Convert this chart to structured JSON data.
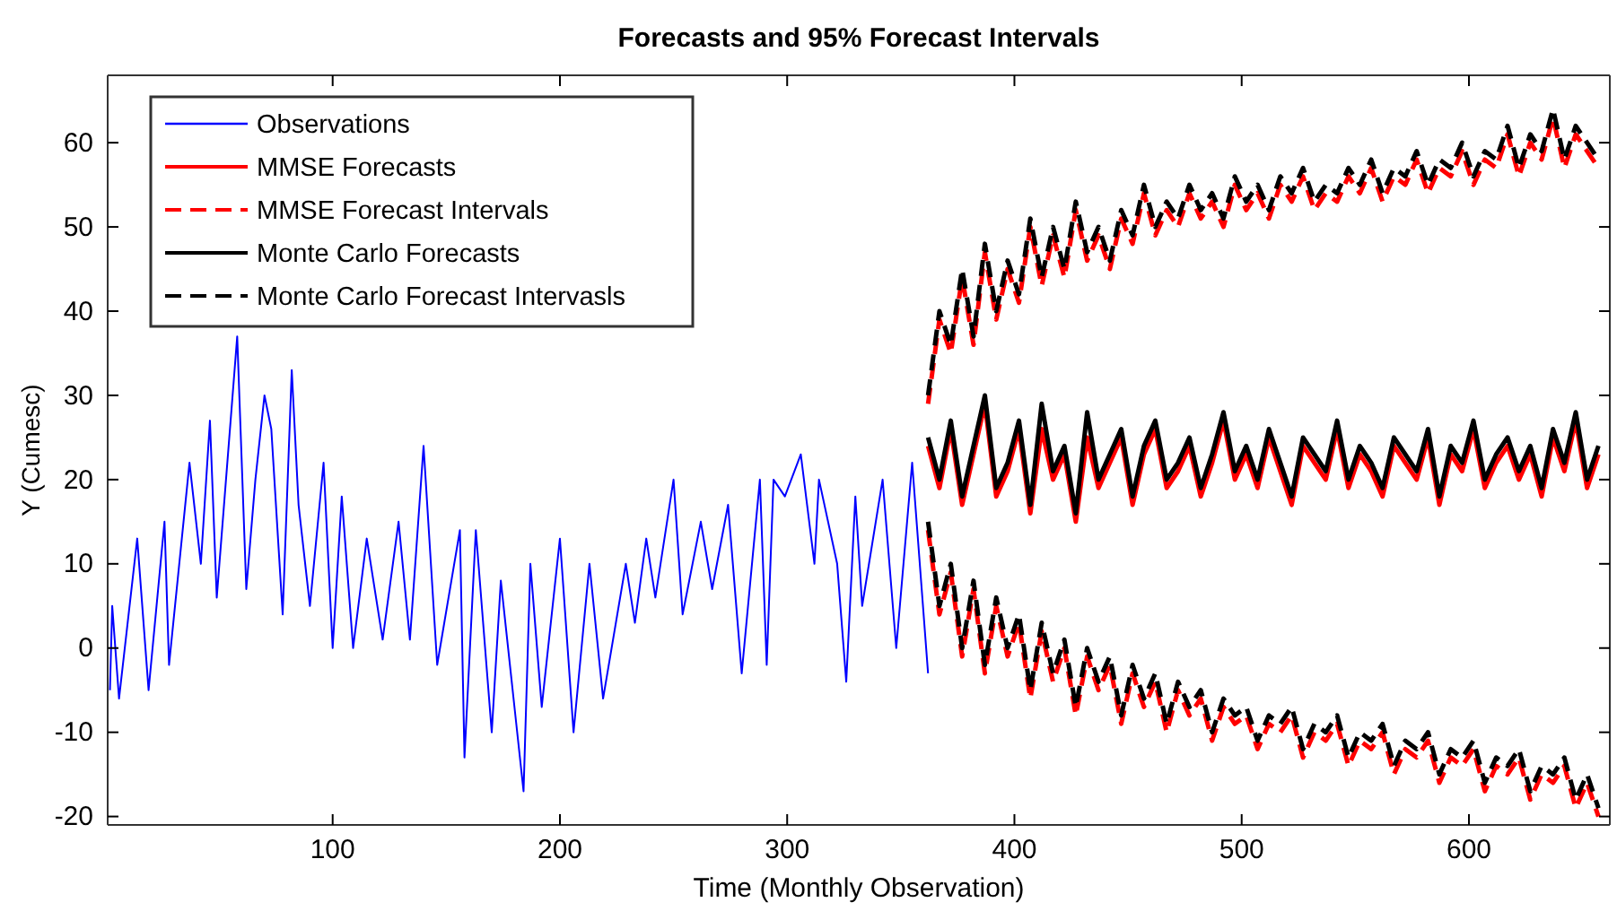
{
  "chart_data": {
    "type": "line",
    "title": "Forecasts and 95% Forecast Intervals",
    "xlabel": "Time (Monthly Observation)",
    "ylabel": "Y (Cumesc)",
    "xlim": [
      1,
      662
    ],
    "ylim": [
      -21,
      68
    ],
    "xticks": [
      100,
      200,
      300,
      400,
      500,
      600
    ],
    "yticks": [
      -20,
      -10,
      0,
      10,
      20,
      30,
      40,
      50,
      60
    ],
    "grid": false,
    "legend": "top left",
    "series": [
      {
        "name": "Observations",
        "color": "#0000ff",
        "line_style": "solid",
        "x": [
          2,
          3,
          6,
          14,
          19,
          26,
          28,
          37,
          42,
          46,
          49,
          58,
          62,
          66,
          70,
          73,
          78,
          82,
          85,
          90,
          96,
          100,
          104,
          109,
          115,
          122,
          129,
          134,
          140,
          146,
          156,
          158,
          163,
          170,
          174,
          180,
          184,
          187,
          192,
          200,
          206,
          213,
          219,
          229,
          233,
          238,
          242,
          250,
          254,
          262,
          267,
          274,
          280,
          288,
          291,
          294,
          299,
          306,
          312,
          314,
          322,
          326,
          330,
          333,
          342,
          348,
          355,
          362
        ],
        "values": [
          -5,
          5,
          -6,
          13,
          -5,
          15,
          -2,
          22,
          10,
          27,
          6,
          37,
          7,
          20,
          30,
          26,
          4,
          33,
          17,
          5,
          22,
          0,
          18,
          0,
          13,
          1,
          15,
          1,
          24,
          -2,
          14,
          -13,
          14,
          -10,
          8,
          -7,
          -17,
          10,
          -7,
          13,
          -10,
          10,
          -6,
          10,
          3,
          13,
          6,
          20,
          4,
          15,
          7,
          17,
          -3,
          20,
          -2,
          20,
          18,
          23,
          10,
          20,
          10,
          -4,
          18,
          5,
          20,
          0,
          22,
          -3
        ]
      },
      {
        "name": "MMSE Forecasts",
        "color": "#ff0000",
        "line_style": "solid",
        "x": [
          362,
          367,
          372,
          377,
          382,
          387,
          392,
          397,
          402,
          407,
          412,
          417,
          422,
          427,
          432,
          437,
          442,
          447,
          452,
          457,
          462,
          467,
          472,
          477,
          482,
          487,
          492,
          497,
          502,
          507,
          512,
          517,
          522,
          527,
          532,
          537,
          542,
          547,
          552,
          557,
          562,
          567,
          572,
          577,
          582,
          587,
          592,
          597,
          602,
          607,
          612,
          617,
          622,
          627,
          632,
          637,
          642,
          647,
          652,
          657
        ],
        "values": [
          24,
          19,
          26,
          17,
          23,
          29,
          18,
          21,
          26,
          16,
          26,
          20,
          23,
          15,
          25,
          19,
          22,
          25,
          17,
          23,
          26,
          19,
          21,
          24,
          18,
          22,
          27,
          20,
          23,
          19,
          25,
          21,
          17,
          24,
          22,
          20,
          26,
          19,
          23,
          21,
          18,
          24,
          22,
          20,
          25,
          17,
          23,
          21,
          26,
          19,
          22,
          24,
          20,
          23,
          18,
          25,
          21,
          27,
          19,
          23
        ]
      },
      {
        "name": "MMSE Forecast Intervals",
        "color": "#ff0000",
        "line_style": "dashed",
        "x": [
          362,
          367,
          372,
          377,
          382,
          387,
          392,
          397,
          402,
          407,
          412,
          417,
          422,
          427,
          432,
          437,
          442,
          447,
          452,
          457,
          462,
          467,
          472,
          477,
          482,
          487,
          492,
          497,
          502,
          507,
          512,
          517,
          522,
          527,
          532,
          537,
          542,
          547,
          552,
          557,
          562,
          567,
          572,
          577,
          582,
          587,
          592,
          597,
          602,
          607,
          612,
          617,
          622,
          627,
          632,
          637,
          642,
          647,
          652,
          657
        ],
        "values": [
          29,
          39,
          35,
          44,
          36,
          47,
          39,
          45,
          41,
          50,
          43,
          49,
          44,
          52,
          46,
          49,
          45,
          51,
          48,
          54,
          49,
          52,
          50,
          54,
          51,
          53,
          50,
          55,
          52,
          54,
          51,
          55,
          53,
          56,
          52,
          54,
          53,
          56,
          54,
          57,
          53,
          56,
          55,
          58,
          54,
          57,
          56,
          59,
          55,
          58,
          57,
          61,
          56,
          60,
          58,
          63,
          57,
          61,
          59,
          57
        ]
      },
      {
        "color": "#ff0000",
        "line_style": "dashed",
        "x": [
          362,
          367,
          372,
          377,
          382,
          387,
          392,
          397,
          402,
          407,
          412,
          417,
          422,
          427,
          432,
          437,
          442,
          447,
          452,
          457,
          462,
          467,
          472,
          477,
          482,
          487,
          492,
          497,
          502,
          507,
          512,
          517,
          522,
          527,
          532,
          537,
          542,
          547,
          552,
          557,
          562,
          567,
          572,
          577,
          582,
          587,
          592,
          597,
          602,
          607,
          612,
          617,
          622,
          627,
          632,
          637,
          642,
          647,
          652,
          657
        ],
        "values": [
          14,
          4,
          9,
          -1,
          7,
          -3,
          5,
          -1,
          3,
          -6,
          2,
          -4,
          0,
          -8,
          -1,
          -5,
          -2,
          -9,
          -3,
          -7,
          -4,
          -10,
          -5,
          -8,
          -6,
          -11,
          -7,
          -9,
          -8,
          -12,
          -9,
          -10,
          -8,
          -13,
          -10,
          -11,
          -9,
          -14,
          -11,
          -12,
          -10,
          -15,
          -12,
          -13,
          -11,
          -16,
          -13,
          -14,
          -12,
          -17,
          -14,
          -15,
          -13,
          -18,
          -15,
          -16,
          -14,
          -19,
          -16,
          -20
        ]
      },
      {
        "name": "Monte Carlo Forecasts",
        "color": "#000000",
        "line_style": "solid",
        "x": [
          362,
          367,
          372,
          377,
          382,
          387,
          392,
          397,
          402,
          407,
          412,
          417,
          422,
          427,
          432,
          437,
          442,
          447,
          452,
          457,
          462,
          467,
          472,
          477,
          482,
          487,
          492,
          497,
          502,
          507,
          512,
          517,
          522,
          527,
          532,
          537,
          542,
          547,
          552,
          557,
          562,
          567,
          572,
          577,
          582,
          587,
          592,
          597,
          602,
          607,
          612,
          617,
          622,
          627,
          632,
          637,
          642,
          647,
          652,
          657
        ],
        "values": [
          25,
          20,
          27,
          18,
          24,
          30,
          19,
          22,
          27,
          17,
          29,
          21,
          24,
          16,
          28,
          20,
          23,
          26,
          18,
          24,
          27,
          20,
          22,
          25,
          19,
          23,
          28,
          21,
          24,
          20,
          26,
          22,
          18,
          25,
          23,
          21,
          27,
          20,
          24,
          22,
          19,
          25,
          23,
          21,
          26,
          18,
          24,
          22,
          27,
          20,
          23,
          25,
          21,
          24,
          19,
          26,
          22,
          28,
          20,
          24
        ]
      },
      {
        "name": "Monte Carlo Forecast Intervasls",
        "color": "#000000",
        "line_style": "dashed",
        "x": [
          362,
          367,
          372,
          377,
          382,
          387,
          392,
          397,
          402,
          407,
          412,
          417,
          422,
          427,
          432,
          437,
          442,
          447,
          452,
          457,
          462,
          467,
          472,
          477,
          482,
          487,
          492,
          497,
          502,
          507,
          512,
          517,
          522,
          527,
          532,
          537,
          542,
          547,
          552,
          557,
          562,
          567,
          572,
          577,
          582,
          587,
          592,
          597,
          602,
          607,
          612,
          617,
          622,
          627,
          632,
          637,
          642,
          647,
          652,
          657
        ],
        "values": [
          30,
          40,
          36,
          45,
          37,
          48,
          40,
          46,
          42,
          51,
          44,
          50,
          45,
          53,
          47,
          50,
          46,
          52,
          49,
          55,
          50,
          53,
          51,
          55,
          52,
          54,
          51,
          56,
          53,
          55,
          52,
          56,
          54,
          57,
          53,
          55,
          54,
          57,
          55,
          58,
          54,
          57,
          56,
          59,
          55,
          58,
          57,
          60,
          56,
          59,
          58,
          62,
          57,
          61,
          59,
          64,
          58,
          62,
          60,
          58
        ]
      },
      {
        "color": "#000000",
        "line_style": "dashed",
        "x": [
          362,
          367,
          372,
          377,
          382,
          387,
          392,
          397,
          402,
          407,
          412,
          417,
          422,
          427,
          432,
          437,
          442,
          447,
          452,
          457,
          462,
          467,
          472,
          477,
          482,
          487,
          492,
          497,
          502,
          507,
          512,
          517,
          522,
          527,
          532,
          537,
          542,
          547,
          552,
          557,
          562,
          567,
          572,
          577,
          582,
          587,
          592,
          597,
          602,
          607,
          612,
          617,
          622,
          627,
          632,
          637,
          642,
          647,
          652,
          657
        ],
        "values": [
          15,
          5,
          10,
          0,
          8,
          -2,
          6,
          0,
          4,
          -5,
          3,
          -3,
          1,
          -7,
          0,
          -4,
          -1,
          -8,
          -2,
          -6,
          -3,
          -9,
          -4,
          -7,
          -5,
          -10,
          -6,
          -8,
          -7,
          -11,
          -8,
          -9,
          -7,
          -12,
          -9,
          -10,
          -8,
          -13,
          -10,
          -11,
          -9,
          -14,
          -11,
          -12,
          -10,
          -15,
          -12,
          -13,
          -11,
          -16,
          -13,
          -14,
          -12,
          -17,
          -14,
          -15,
          -13,
          -18,
          -15,
          -19
        ]
      }
    ]
  }
}
